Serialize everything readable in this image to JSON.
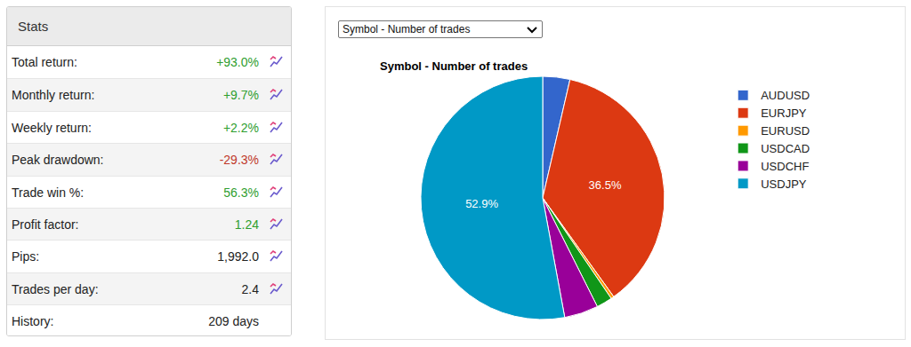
{
  "stats": {
    "title": "Stats",
    "rows": [
      {
        "label": "Total return:",
        "value": "+93.0%",
        "color": "green",
        "icon": true
      },
      {
        "label": "Monthly return:",
        "value": "+9.7%",
        "color": "green",
        "icon": true
      },
      {
        "label": "Weekly return:",
        "value": "+2.2%",
        "color": "green",
        "icon": true
      },
      {
        "label": "Peak drawdown:",
        "value": "-29.3%",
        "color": "red",
        "icon": true
      },
      {
        "label": "Trade win %:",
        "value": "56.3%",
        "color": "green",
        "icon": true
      },
      {
        "label": "Profit factor:",
        "value": "1.24",
        "color": "green",
        "icon": true
      },
      {
        "label": "Pips:",
        "value": "1,992.0",
        "color": "black",
        "icon": true
      },
      {
        "label": "Trades per day:",
        "value": "2.4",
        "color": "black",
        "icon": true
      },
      {
        "label": "History:",
        "value": "209 days",
        "color": "black",
        "icon": false
      }
    ]
  },
  "dropdown": "Symbol - Number of trades",
  "chart_data": {
    "type": "pie",
    "title": "Symbol - Number of trades",
    "categories": [
      "AUDUSD",
      "EURJPY",
      "EURUSD",
      "USDCAD",
      "USDCHF",
      "USDJPY"
    ],
    "values": [
      3.6,
      36.5,
      0.4,
      2.1,
      4.5,
      52.9
    ],
    "value_labels": [
      null,
      "36.5%",
      null,
      null,
      null,
      "52.9%"
    ],
    "colors": [
      "#3366cc",
      "#dc3912",
      "#ff9900",
      "#109618",
      "#990099",
      "#0099c6"
    ],
    "data_labels": true,
    "legend": "right"
  }
}
